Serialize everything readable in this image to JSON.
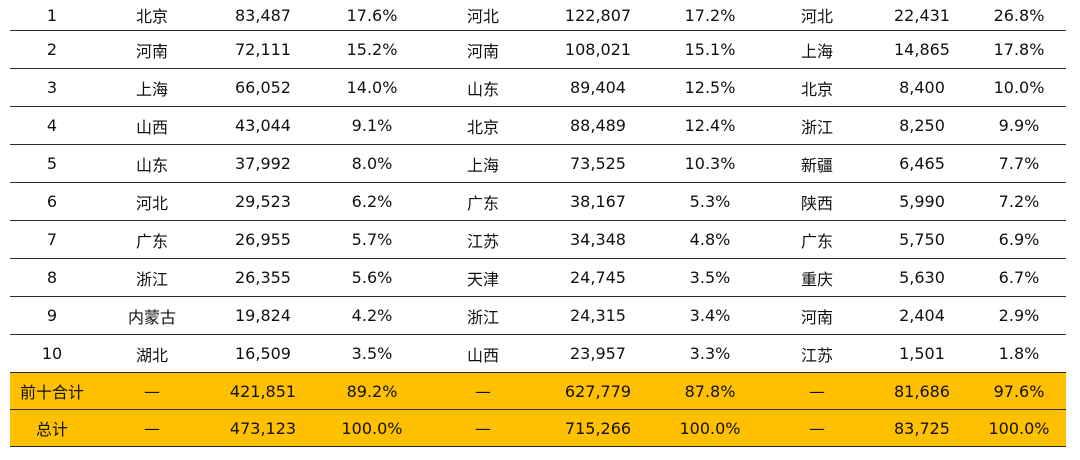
{
  "rows": [
    {
      "rank": "1",
      "c1_name": "北京",
      "c1_value": "83,487",
      "c1_share": "17.6%",
      "c2_name": "河北",
      "c2_value": "122,807",
      "c2_share": "17.2%",
      "c3_name": "河北",
      "c3_value": "22,431",
      "c3_share": "26.8%"
    },
    {
      "rank": "2",
      "c1_name": "河南",
      "c1_value": "72,111",
      "c1_share": "15.2%",
      "c2_name": "河南",
      "c2_value": "108,021",
      "c2_share": "15.1%",
      "c3_name": "上海",
      "c3_value": "14,865",
      "c3_share": "17.8%"
    },
    {
      "rank": "3",
      "c1_name": "上海",
      "c1_value": "66,052",
      "c1_share": "14.0%",
      "c2_name": "山东",
      "c2_value": "89,404",
      "c2_share": "12.5%",
      "c3_name": "北京",
      "c3_value": "8,400",
      "c3_share": "10.0%"
    },
    {
      "rank": "4",
      "c1_name": "山西",
      "c1_value": "43,044",
      "c1_share": "9.1%",
      "c2_name": "北京",
      "c2_value": "88,489",
      "c2_share": "12.4%",
      "c3_name": "浙江",
      "c3_value": "8,250",
      "c3_share": "9.9%"
    },
    {
      "rank": "5",
      "c1_name": "山东",
      "c1_value": "37,992",
      "c1_share": "8.0%",
      "c2_name": "上海",
      "c2_value": "73,525",
      "c2_share": "10.3%",
      "c3_name": "新疆",
      "c3_value": "6,465",
      "c3_share": "7.7%"
    },
    {
      "rank": "6",
      "c1_name": "河北",
      "c1_value": "29,523",
      "c1_share": "6.2%",
      "c2_name": "广东",
      "c2_value": "38,167",
      "c2_share": "5.3%",
      "c3_name": "陕西",
      "c3_value": "5,990",
      "c3_share": "7.2%"
    },
    {
      "rank": "7",
      "c1_name": "广东",
      "c1_value": "26,955",
      "c1_share": "5.7%",
      "c2_name": "江苏",
      "c2_value": "34,348",
      "c2_share": "4.8%",
      "c3_name": "广东",
      "c3_value": "5,750",
      "c3_share": "6.9%"
    },
    {
      "rank": "8",
      "c1_name": "浙江",
      "c1_value": "26,355",
      "c1_share": "5.6%",
      "c2_name": "天津",
      "c2_value": "24,745",
      "c2_share": "3.5%",
      "c3_name": "重庆",
      "c3_value": "5,630",
      "c3_share": "6.7%"
    },
    {
      "rank": "9",
      "c1_name": "内蒙古",
      "c1_value": "19,824",
      "c1_share": "4.2%",
      "c2_name": "浙江",
      "c2_value": "24,315",
      "c2_share": "3.4%",
      "c3_name": "河南",
      "c3_value": "2,404",
      "c3_share": "2.9%"
    },
    {
      "rank": "10",
      "c1_name": "湖北",
      "c1_value": "16,509",
      "c1_share": "3.5%",
      "c2_name": "山西",
      "c2_value": "23,957",
      "c2_share": "3.3%",
      "c3_name": "江苏",
      "c3_value": "1,501",
      "c3_share": "1.8%"
    }
  ],
  "summary": [
    {
      "label": "前十合计",
      "c1_name": "—",
      "c1_value": "421,851",
      "c1_share": "89.2%",
      "c2_name": "—",
      "c2_value": "627,779",
      "c2_share": "87.8%",
      "c3_name": "—",
      "c3_value": "81,686",
      "c3_share": "97.6%"
    },
    {
      "label": "总计",
      "c1_name": "—",
      "c1_value": "473,123",
      "c1_share": "100.0%",
      "c2_name": "—",
      "c2_value": "715,266",
      "c2_share": "100.0%",
      "c3_name": "—",
      "c3_value": "83,725",
      "c3_share": "100.0%"
    }
  ],
  "colors": {
    "summary_fill": "#ffc000",
    "rule": "#2b2b2b",
    "text": "#111111"
  }
}
